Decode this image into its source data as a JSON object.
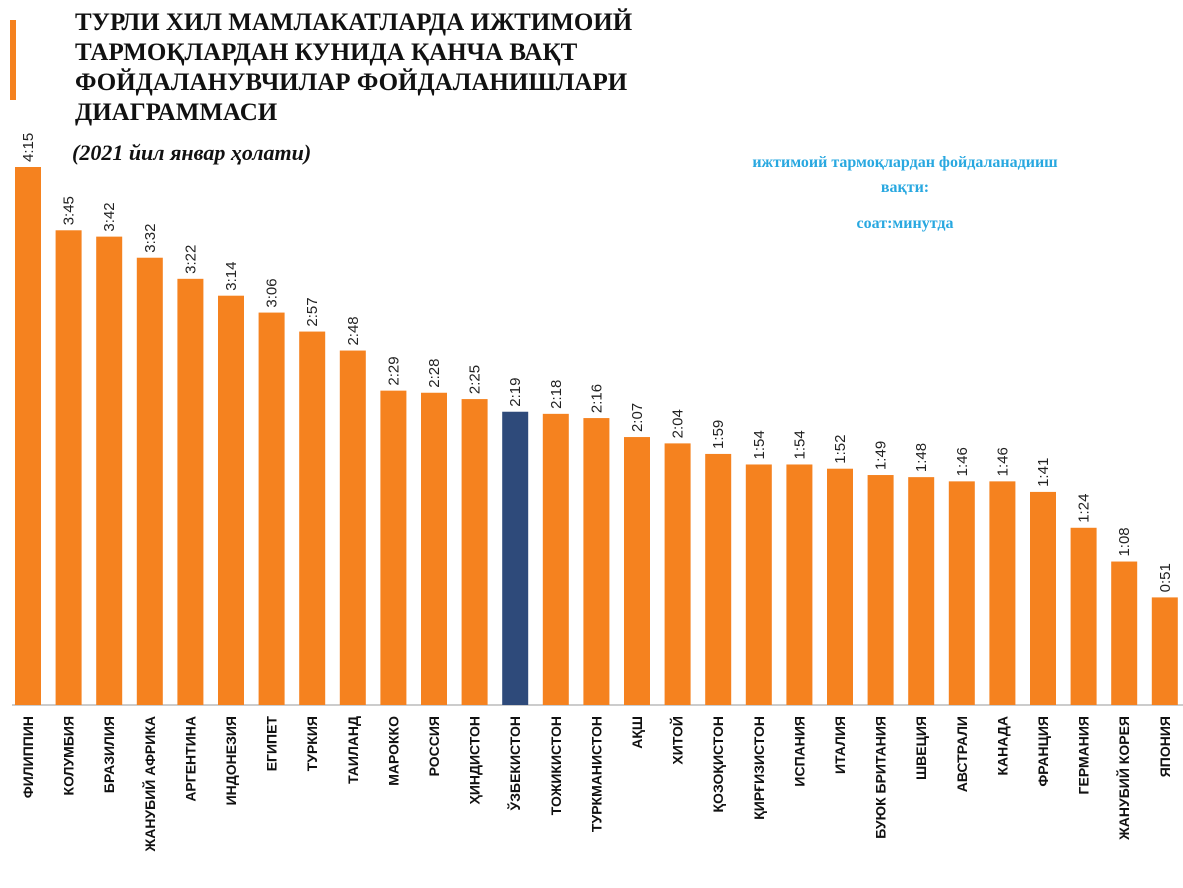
{
  "chart_data": {
    "type": "bar",
    "title_lines": [
      "ТУРЛИ ХИЛ МАМЛАКАТЛАРДА ИЖТИМОИЙ",
      "ТАРМОҚЛАРДАН КУНИДА ҚАНЧА ВАҚТ",
      "ФОЙДАЛАНУВЧИЛАР ФОЙДАЛАНИШЛАРИ",
      "ДИАГРАММАСИ"
    ],
    "subtitle": "(2021 йил январ ҳолати)",
    "annotation_lines": [
      "ижтимоий тармоқлардан фойдаланадииш",
      "вақти:",
      "соат:минутда"
    ],
    "categories": [
      "ФИЛИППИН",
      "КОЛУМБИЯ",
      "БРАЗИЛИЯ",
      "ЖАНУБИЙ АФРИКА",
      "АРГЕНТИНА",
      "ИНДОНЕЗИЯ",
      "ЕГИПЕТ",
      "ТУРКИЯ",
      "ТАИЛАНД",
      "МАРОККО",
      "РОССИЯ",
      "ҲИНДИСТОН",
      "ЎЗБЕКИСТОН",
      "ТОЖИКИСТОН",
      "ТУРКМАНИСТОН",
      "АҚШ",
      "ХИТОЙ",
      "ҚОЗОҚИСТОН",
      "ҚИРҒИЗИСТОН",
      "ИСПАНИЯ",
      "ИТАЛИЯ",
      "БУЮК БРИТАНИЯ",
      "ШВЕЦИЯ",
      "АВСТРАЛИ",
      "КАНАДА",
      "ФРАНЦИЯ",
      "ГЕРМАНИЯ",
      "ЖАНУБИЙ КОРЕЯ",
      "ЯПОНИЯ"
    ],
    "values": [
      255,
      225,
      222,
      212,
      202,
      194,
      186,
      177,
      168,
      149,
      148,
      145,
      139,
      138,
      136,
      127,
      124,
      119,
      114,
      114,
      112,
      109,
      108,
      106,
      106,
      101,
      84,
      68,
      51
    ],
    "value_labels": [
      "4:15",
      "3:45",
      "3:42",
      "3:32",
      "3:22",
      "3:14",
      "3:06",
      "2:57",
      "2:48",
      "2:29",
      "2:28",
      "2:25",
      "2:19",
      "2:18",
      "2:16",
      "2:07",
      "2:04",
      "1:59",
      "1:54",
      "1:54",
      "1:52",
      "1:49",
      "1:48",
      "1:46",
      "1:46",
      "1:41",
      "1:24",
      "1:08",
      "0:51"
    ],
    "colors": [
      "#f5821f",
      "#f5821f",
      "#f5821f",
      "#f5821f",
      "#f5821f",
      "#f5821f",
      "#f5821f",
      "#f5821f",
      "#f5821f",
      "#f5821f",
      "#f5821f",
      "#f5821f",
      "#2e4a7a",
      "#f5821f",
      "#f5821f",
      "#f5821f",
      "#f5821f",
      "#f5821f",
      "#f5821f",
      "#f5821f",
      "#f5821f",
      "#f5821f",
      "#f5821f",
      "#f5821f",
      "#f5821f",
      "#f5821f",
      "#f5821f",
      "#f5821f",
      "#f5821f"
    ]
  }
}
